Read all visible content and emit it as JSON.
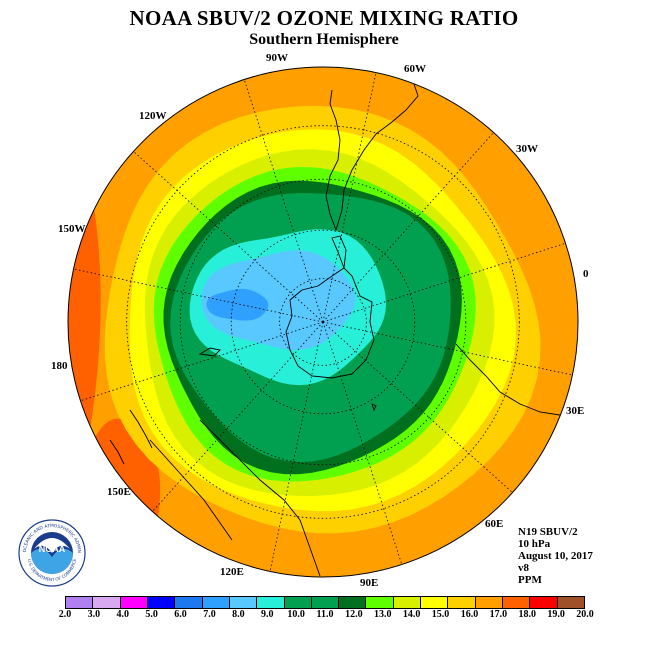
{
  "header": {
    "title": "NOAA SBUV/2 OZONE MIXING RATIO",
    "subtitle": "Southern Hemisphere"
  },
  "longitude_labels": [
    "90W",
    "60W",
    "30W",
    "0",
    "30E",
    "60E",
    "90E",
    "120E",
    "150E",
    "180",
    "150W",
    "120W"
  ],
  "info": {
    "satellite": "N19 SBUV/2",
    "level": "10 hPa",
    "date": "August 10, 2017",
    "version": "v8",
    "units": "PPM"
  },
  "logo": {
    "text": "NOAA",
    "ring_text": "NATIONAL OCEANIC AND ATMOSPHERIC ADMINISTRATION",
    "ring_text_bottom": "U.S. DEPARTMENT OF COMMERCE"
  },
  "colorbar": {
    "ticks": [
      "2.0",
      "3.0",
      "4.0",
      "5.0",
      "6.0",
      "7.0",
      "8.0",
      "9.0",
      "10.0",
      "11.0",
      "12.0",
      "13.0",
      "14.0",
      "15.0",
      "16.0",
      "17.0",
      "18.0",
      "19.0",
      "20.0"
    ],
    "colors": [
      "#b080f0",
      "#d8a8f0",
      "#ff00ff",
      "#0000ff",
      "#1e78f0",
      "#30a0ff",
      "#58c8ff",
      "#28f0d8",
      "#00a050",
      "#00a050",
      "#00701e",
      "#60ff00",
      "#d8f000",
      "#ffff00",
      "#ffd000",
      "#ffa000",
      "#ff6000",
      "#ff0000",
      "#a05028"
    ]
  },
  "chart_data": {
    "type": "heatmap",
    "title": "NOAA SBUV/2 OZONE MIXING RATIO",
    "subtitle": "Southern Hemisphere",
    "projection": "south polar stereographic",
    "units": "PPM",
    "level": "10 hPa",
    "date": "August 10, 2017",
    "min_value": 9.0,
    "max_value": 19.0,
    "minimum_location": "over Antarctica, offset toward Ross Sea / 150W-180",
    "contour_levels": [
      9.0,
      10.0,
      11.0,
      12.0,
      13.0,
      14.0,
      15.0,
      16.0,
      17.0,
      18.0,
      19.0
    ]
  }
}
